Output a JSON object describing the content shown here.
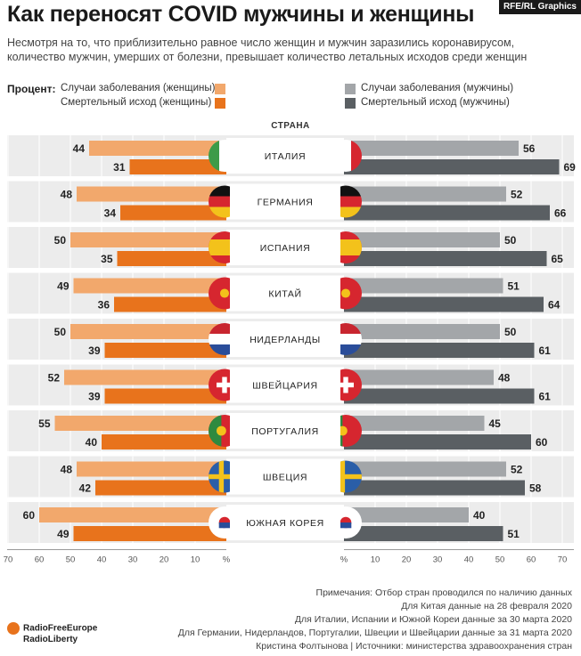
{
  "header": {
    "title": "Как переносят COVID мужчины и женщины",
    "credit": "RFE/RL Graphics",
    "subtitle": "Несмотря на то, что приблизительно равное число женщин и мужчин заразились коронавирусом, количество мужчин, умерших от болезни, превышает количество летальных исходов среди женщин"
  },
  "legend": {
    "heading": "Процент:",
    "women_cases": "Случаи заболевания  (женщины)",
    "women_deaths": "Смертельный исход (женщины)",
    "men_cases": "Случаи заболевания (мужчины)",
    "men_deaths": "Смертельный исход (мужчины)"
  },
  "colors": {
    "women_cases": "#f2a86c",
    "women_deaths": "#e8731c",
    "men_cases": "#a3a6a9",
    "men_deaths": "#5a5f63",
    "row_bg": "#ececec"
  },
  "chart_data": {
    "type": "bar",
    "orientation": "horizontal-butterfly",
    "category_axis_label": "СТРАНА",
    "categories": [
      "ИТАЛИЯ",
      "ГЕРМАНИЯ",
      "ИСПАНИЯ",
      "КИТАЙ",
      "НИДЕРЛАНДЫ",
      "ШВЕЙЦАРИЯ",
      "ПОРТУГАЛИЯ",
      "ШВЕЦИЯ",
      "ЮЖНАЯ КОРЕЯ"
    ],
    "flags": [
      "italy-flag",
      "germany-flag",
      "spain-flag",
      "china-flag",
      "netherlands-flag",
      "switzerland-flag",
      "portugal-flag",
      "sweden-flag",
      "south-korea-flag"
    ],
    "series": [
      {
        "name": "Случаи заболевания  (женщины)",
        "side": "left",
        "values": [
          44,
          48,
          50,
          49,
          50,
          52,
          55,
          48,
          60
        ]
      },
      {
        "name": "Смертельный исход (женщины)",
        "side": "left",
        "values": [
          31,
          34,
          35,
          36,
          39,
          39,
          40,
          42,
          49
        ]
      },
      {
        "name": "Случаи заболевания (мужчины)",
        "side": "right",
        "values": [
          56,
          52,
          50,
          51,
          50,
          48,
          45,
          52,
          40
        ]
      },
      {
        "name": "Смертельный исход (мужчины)",
        "side": "right",
        "values": [
          69,
          66,
          65,
          64,
          61,
          61,
          60,
          58,
          51
        ]
      }
    ],
    "xlim": [
      0,
      70
    ],
    "ticks_left": [
      "70",
      "60",
      "50",
      "40",
      "30",
      "20",
      "10",
      "%"
    ],
    "ticks_right": [
      "%",
      "10",
      "20",
      "30",
      "40",
      "50",
      "60",
      "70"
    ],
    "grid": true
  },
  "notes": [
    "Примечания: Отбор стран проводился по наличию данных",
    "Для Китая данные на 28 февраля 2020",
    "Для Италии, Испании и Южной Кореи данные за 30 марта 2020",
    "Для Германии, Нидерландов, Португалии, Швеции и Швейцарии данные за 31 марта 2020",
    "Кристина Фолтынова | Источники: министерства здравоохранения стран"
  ],
  "logo": {
    "line1": "RadioFreeEurope",
    "line2": "RadioLiberty"
  }
}
